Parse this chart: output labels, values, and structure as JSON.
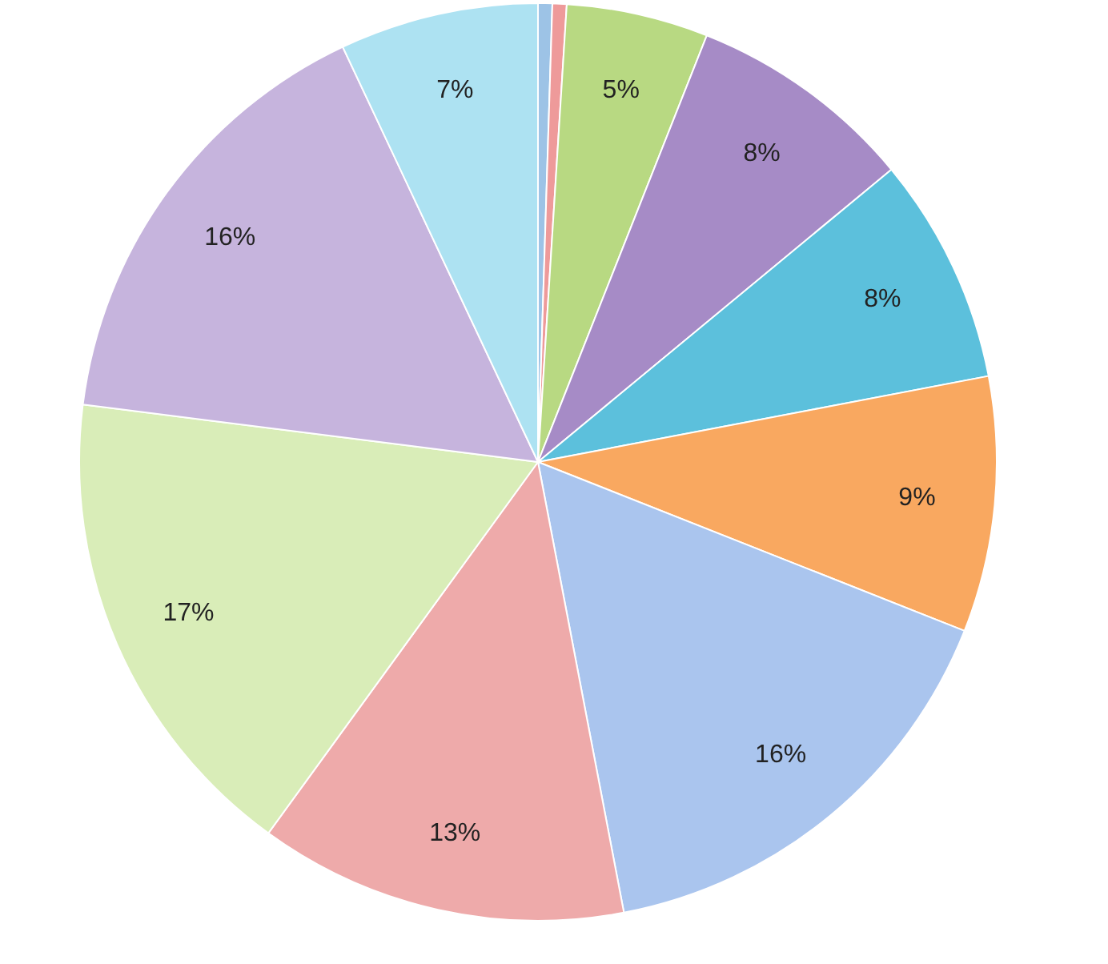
{
  "chart_data": {
    "type": "pie",
    "categories": [
      null,
      null,
      null,
      null,
      null,
      null,
      null,
      null,
      null,
      null,
      null
    ],
    "values": [
      0.5,
      0.5,
      5,
      8,
      8,
      9,
      16,
      13,
      17,
      16,
      7
    ],
    "value_labels": [
      null,
      null,
      "5%",
      "8%",
      "8%",
      "9%",
      "16%",
      "13%",
      "17%",
      "16%",
      "7%"
    ],
    "colors": [
      "#9dc3e6",
      "#ee9a9a",
      "#b8d982",
      "#a68bc6",
      "#5cc0dc",
      "#f9a860",
      "#aac5ee",
      "#eeaaaa",
      "#d9edb8",
      "#c6b4dd",
      "#ade2f2"
    ],
    "legend": false
  }
}
